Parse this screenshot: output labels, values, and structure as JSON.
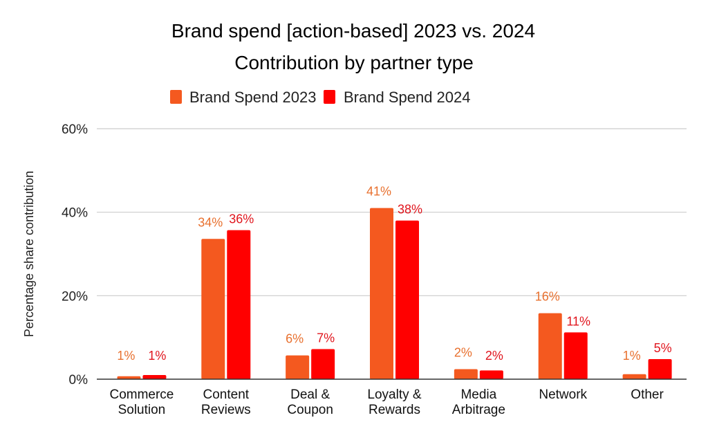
{
  "chart_data": {
    "type": "bar",
    "title": "Brand spend [action-based] 2023 vs. 2024",
    "subtitle": "Contribution by partner type",
    "xlabel": "",
    "ylabel": "Percentage share contribution",
    "ylim": [
      0,
      60
    ],
    "yticks": [
      0,
      20,
      40,
      60
    ],
    "ytick_labels": [
      "0%",
      "20%",
      "40%",
      "60%"
    ],
    "grid": true,
    "legend_position": "top-center",
    "categories": [
      [
        "Commerce",
        "Solution"
      ],
      [
        "Content",
        "Reviews"
      ],
      [
        "Deal &",
        "Coupon"
      ],
      [
        "Loyalty &",
        "Rewards"
      ],
      [
        "Media",
        "Arbitrage"
      ],
      [
        "Network"
      ],
      [
        "Other"
      ]
    ],
    "series": [
      {
        "name": "Brand Spend 2023",
        "color": "#F4591F",
        "label_color": "#E8702E",
        "values": [
          0.7,
          33.6,
          5.7,
          41.0,
          2.4,
          15.8,
          1.2
        ],
        "data_labels": [
          "1%",
          "34%",
          "6%",
          "41%",
          "2%",
          "16%",
          "1%"
        ]
      },
      {
        "name": "Brand Spend 2024",
        "color": "#FF0000",
        "label_color": "#E0141C",
        "values": [
          1.0,
          35.7,
          7.2,
          38.0,
          2.1,
          11.2,
          4.8
        ],
        "data_labels": [
          "1%",
          "36%",
          "7%",
          "38%",
          "2%",
          "11%",
          "5%"
        ]
      }
    ]
  }
}
